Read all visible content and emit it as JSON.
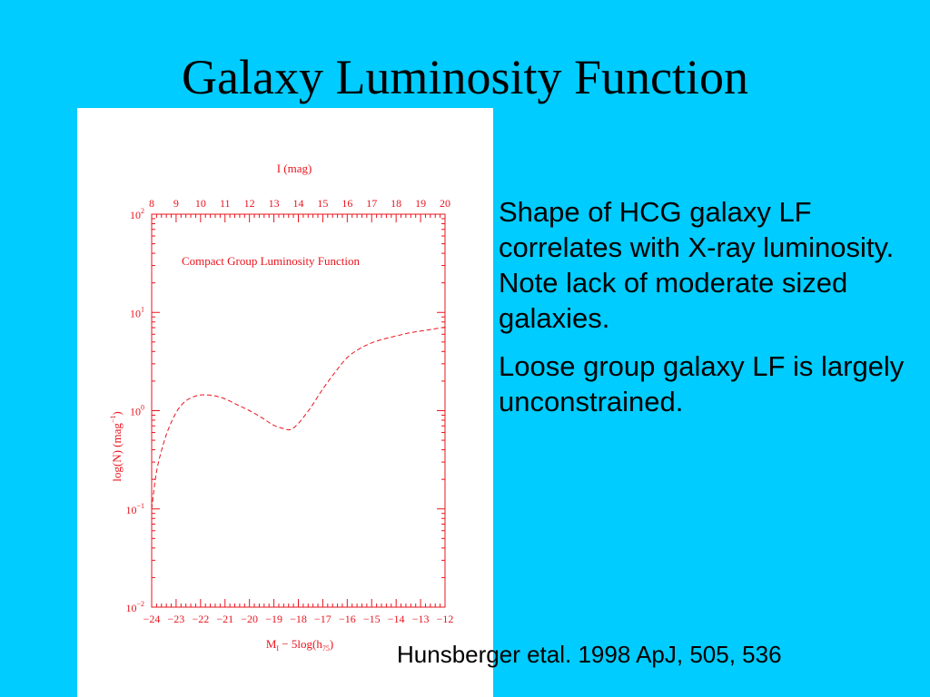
{
  "slide": {
    "title": "Galaxy Luminosity Function",
    "bullets": [
      "Shape of HCG galaxy LF correlates with X-ray luminosity. Note lack of moderate sized galaxies.",
      "Loose group galaxy LF is largely unconstrained."
    ],
    "citation": "Hunsberger etal. 1998 ApJ, 505, 536"
  },
  "colors": {
    "background": "#00ccff",
    "plot_ink": "#e8141e",
    "panel": "#ffffff"
  },
  "chart_data": {
    "type": "line",
    "title": "Compact Group Luminosity Function",
    "top_axis_label": "I (mag)",
    "xlabel_main": "M",
    "xlabel_sub": "I",
    "xlabel_mid": " − 5log(h",
    "xlabel_sub2": "75",
    "xlabel_end": ")",
    "ylabel": "log(N)  (mag",
    "ylabel_sup": "−1",
    "ylabel_end": ")",
    "xlim": [
      -24,
      -12
    ],
    "top_xlim": [
      8,
      20
    ],
    "ylim_log10": [
      -2,
      2
    ],
    "y_scale": "log",
    "x_tick_labels": [
      "−24",
      "−23",
      "−22",
      "−21",
      "−20",
      "−19",
      "−18",
      "−17",
      "−16",
      "−15",
      "−14",
      "−13",
      "−12"
    ],
    "top_tick_labels": [
      "8",
      "9",
      "10",
      "11",
      "12",
      "13",
      "14",
      "15",
      "16",
      "17",
      "18",
      "19",
      "20"
    ],
    "y_tick_labels": [
      {
        "base": "10",
        "exp": "2",
        "value": 2
      },
      {
        "base": "10",
        "exp": "1",
        "value": 1
      },
      {
        "base": "10",
        "exp": "0",
        "value": 0
      },
      {
        "base": "10",
        "exp": "−1",
        "value": -1
      },
      {
        "base": "10",
        "exp": "−2",
        "value": -2
      }
    ],
    "line_style": "dashed",
    "series": [
      {
        "x": [
          -24.0,
          -23.8,
          -23.5,
          -23.2,
          -22.9,
          -22.6,
          -22.3,
          -22.0,
          -21.7,
          -21.4,
          -21.0,
          -20.5,
          -20.0,
          -19.5,
          -19.0,
          -18.5,
          -18.3,
          -18.0,
          -17.5,
          -17.0,
          -16.5,
          -16.0,
          -15.5,
          -15.0,
          -14.5,
          -14.0,
          -13.5,
          -13.0,
          -12.5,
          -12.0
        ],
        "y": [
          -1.0,
          -0.62,
          -0.32,
          -0.12,
          0.02,
          0.1,
          0.14,
          0.16,
          0.16,
          0.15,
          0.12,
          0.06,
          0.0,
          -0.07,
          -0.15,
          -0.19,
          -0.19,
          -0.13,
          0.03,
          0.22,
          0.39,
          0.54,
          0.63,
          0.69,
          0.73,
          0.76,
          0.79,
          0.81,
          0.83,
          0.85
        ]
      }
    ]
  }
}
